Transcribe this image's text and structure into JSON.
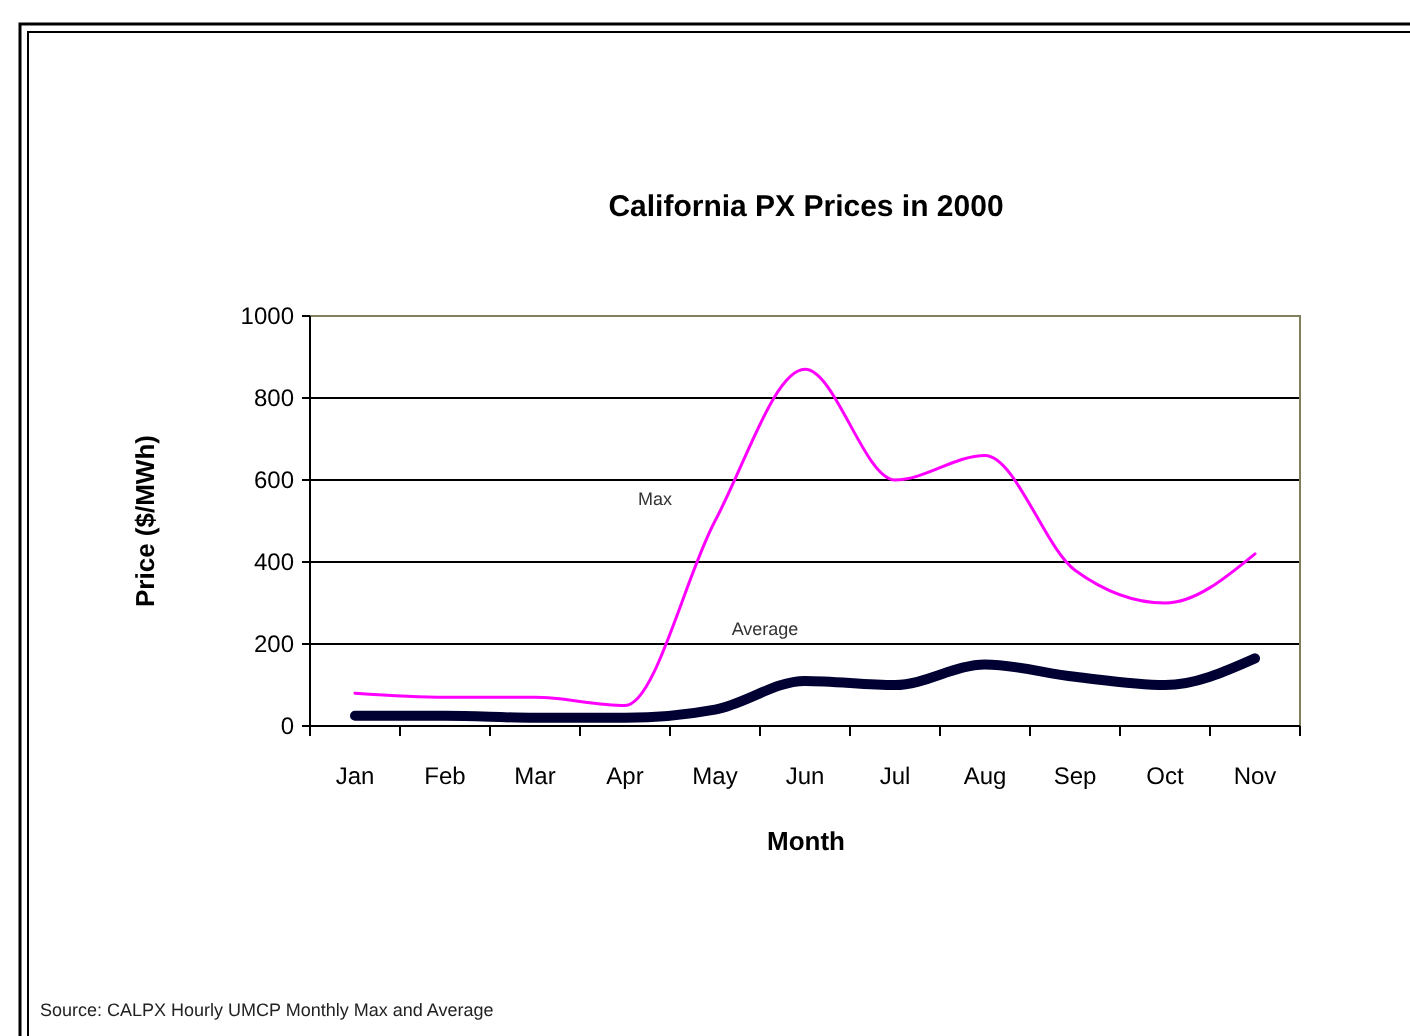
{
  "chart_data": {
    "type": "line",
    "title": "California PX Prices in 2000",
    "xlabel": "Month",
    "ylabel": "Price ($/MWh)",
    "categories": [
      "Jan",
      "Feb",
      "Mar",
      "Apr",
      "May",
      "Jun",
      "Jul",
      "Aug",
      "Sep",
      "Oct",
      "Nov"
    ],
    "series": [
      {
        "name": "Max",
        "color": "#ff00ff",
        "values": [
          80,
          70,
          70,
          50,
          500,
          870,
          600,
          660,
          380,
          300,
          420
        ]
      },
      {
        "name": "Average",
        "color": "#000033",
        "values": [
          25,
          25,
          20,
          20,
          40,
          110,
          100,
          150,
          120,
          100,
          165
        ]
      }
    ],
    "ylim": [
      0,
      1000
    ],
    "yticks": [
      0,
      200,
      400,
      600,
      800,
      1000
    ],
    "grid": "y",
    "marker": "none",
    "line_style": "solid",
    "annotations": [
      "Source: CALPX Hourly UMCP Monthly Max and Average"
    ]
  }
}
